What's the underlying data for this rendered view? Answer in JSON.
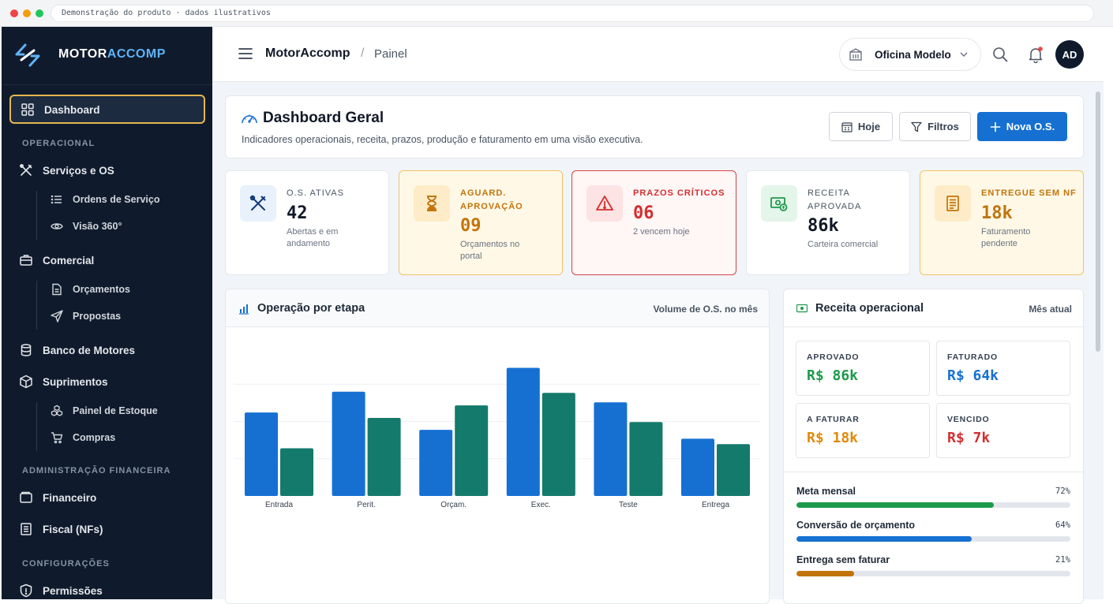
{
  "browser": {
    "address": "Demonstração do produto · dados ilustrativos"
  },
  "brand": {
    "name_a": "MOTOR",
    "name_b": "ACCOMP"
  },
  "sidebar": {
    "dashboard": "Dashboard",
    "section_operacional": "OPERACIONAL",
    "servicos": "Serviços e OS",
    "ordens": "Ordens de Serviço",
    "visao": "Visão 360°",
    "comercial": "Comercial",
    "orcamentos": "Orçamentos",
    "propostas": "Propostas",
    "banco": "Banco de Motores",
    "suprimentos": "Suprimentos",
    "estoque": "Painel de Estoque",
    "compras": "Compras",
    "section_financeira": "ADMINISTRAÇÃO FINANCEIRA",
    "financeiro": "Financeiro",
    "fiscal": "Fiscal (NFs)",
    "section_config": "CONFIGURAÇÕES",
    "permissoes": "Permissões"
  },
  "topbar": {
    "app": "MotorAccomp",
    "separator": "/",
    "page": "Painel",
    "workshop": "Oficina Modelo",
    "avatar": "AD"
  },
  "header": {
    "title": "Dashboard Geral",
    "subtitle": "Indicadores operacionais, receita, prazos, produção e faturamento em uma visão executiva.",
    "btn_today": "Hoje",
    "btn_filters": "Filtros",
    "btn_new": "Nova O.S."
  },
  "kpis": [
    {
      "label1": "O.S. ATIVAS",
      "label2": "",
      "value": "42",
      "sub1": "Abertas e em",
      "sub2": "andamento"
    },
    {
      "label1": "AGUARD.",
      "label2": "APROVAÇÃO",
      "value": "09",
      "sub1": "Orçamentos no",
      "sub2": "portal"
    },
    {
      "label1": "PRAZOS CRÍTICOS",
      "label2": "",
      "value": "06",
      "sub1": "2 vencem hoje",
      "sub2": ""
    },
    {
      "label1": "RECEITA",
      "label2": "APROVADA",
      "value": "86k",
      "sub1": "Carteira comercial",
      "sub2": ""
    },
    {
      "label1": "ENTREGUE SEM NF",
      "label2": "",
      "value": "18k",
      "sub1": "Faturamento",
      "sub2": "pendente"
    }
  ],
  "colors": {
    "primary": "#1670d2",
    "teal": "#147a6b",
    "amber": "#c2740c",
    "red": "#d32f2f",
    "green": "#1d9a4a",
    "gold": "#e6b64f"
  },
  "chart_panel": {
    "title": "Operação por etapa",
    "note": "Volume de O.S. no mês"
  },
  "chart_data": {
    "type": "bar",
    "categories": [
      "Entrada",
      "Perit.",
      "Orçam.",
      "Exec.",
      "Teste",
      "Entrega"
    ],
    "series": [
      {
        "values": [
          14,
          17.5,
          11.1,
          21.5,
          15.7,
          9.6
        ]
      },
      {
        "values": [
          8,
          13.1,
          15.2,
          17.3,
          12.4,
          8.7
        ]
      }
    ],
    "ylim": [
      0,
      25
    ],
    "grid": true,
    "legend": "none"
  },
  "revenue_panel": {
    "title": "Receita operacional",
    "note": "Mês atual",
    "boxes": [
      {
        "label": "APROVADO",
        "value": "R$ 86k"
      },
      {
        "label": "FATURADO",
        "value": "R$ 64k"
      },
      {
        "label": "A FATURAR",
        "value": "R$ 18k"
      },
      {
        "label": "VENCIDO",
        "value": "R$ 7k"
      }
    ],
    "metrics": [
      {
        "name": "Meta mensal",
        "pct_label": "72%",
        "pct": 0.72
      },
      {
        "name": "Conversão de orçamento",
        "pct_label": "64%",
        "pct": 0.64
      },
      {
        "name": "Entrega sem faturar",
        "pct_label": "21%",
        "pct": 0.21
      }
    ]
  }
}
